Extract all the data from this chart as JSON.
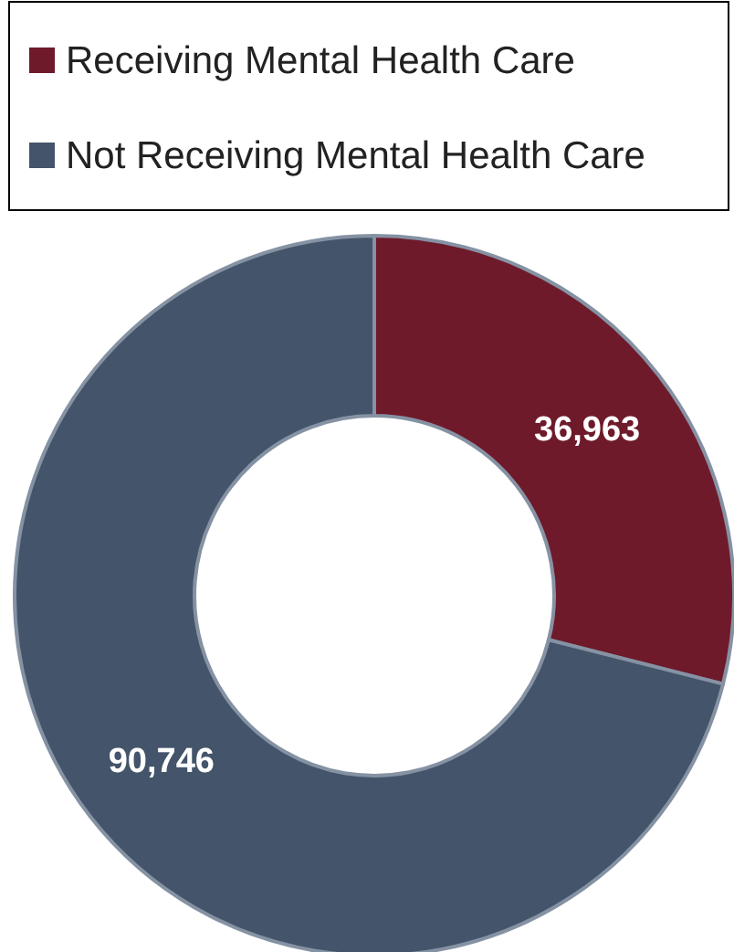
{
  "chart_data": {
    "type": "donut",
    "categories": [
      "Receiving Mental Health Care",
      "Not Receiving Mental Health Care"
    ],
    "values": [
      36963,
      90746
    ],
    "colors": [
      "#6e1a2b",
      "#44546a"
    ],
    "value_labels": [
      "36,963",
      "90,746"
    ],
    "legend": "top"
  }
}
